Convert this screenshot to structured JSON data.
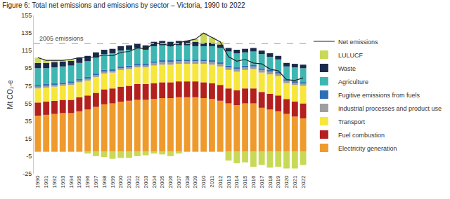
{
  "chart_data": {
    "type": "bar",
    "stacked": true,
    "title": "Figure 6: Total net emissions and emissions by sector – Victoria, 1990 to 2022",
    "y_label": "Mt CO₂-e",
    "categories": [
      "1990",
      "1991",
      "1992",
      "1993",
      "1994",
      "1995",
      "1996",
      "1997",
      "1998",
      "1999",
      "2000",
      "2001",
      "2002",
      "2003",
      "2004",
      "2005",
      "2006",
      "2007",
      "2008",
      "2009",
      "2010",
      "2011",
      "2012",
      "2013",
      "2014",
      "2015",
      "2016",
      "2017",
      "2018",
      "2019",
      "2020",
      "2021",
      "2022"
    ],
    "series": [
      {
        "name": "Electricity generation",
        "color": "#ef9a2d",
        "values": [
          41,
          42,
          43,
          44,
          44,
          46,
          48,
          51,
          54,
          55,
          57,
          58,
          59,
          59,
          60,
          61,
          61,
          62,
          62,
          62,
          61,
          60,
          58,
          55,
          53,
          55,
          55,
          50,
          48,
          46,
          43,
          40,
          38
        ]
      },
      {
        "name": "Fuel combustion",
        "color": "#b3201e",
        "values": [
          15,
          15,
          15,
          15,
          15,
          16,
          16,
          16,
          17,
          17,
          17,
          17,
          18,
          18,
          18,
          18,
          18,
          18,
          18,
          18,
          18,
          18,
          18,
          17,
          17,
          17,
          17,
          18,
          18,
          18,
          17,
          17,
          17
        ]
      },
      {
        "name": "Transport",
        "color": "#f7e63b",
        "values": [
          16,
          16,
          16,
          16,
          17,
          17,
          17,
          18,
          18,
          18,
          19,
          19,
          19,
          19,
          20,
          20,
          20,
          20,
          20,
          20,
          21,
          21,
          21,
          21,
          21,
          21,
          22,
          22,
          22,
          22,
          18,
          19,
          20
        ]
      },
      {
        "name": "Industrial processes and product use",
        "color": "#9e9e9e",
        "values": [
          2,
          2,
          2,
          2,
          2,
          2,
          2,
          2,
          2,
          2,
          2,
          2,
          2,
          2,
          3,
          3,
          3,
          3,
          3,
          3,
          3,
          3,
          3,
          3,
          3,
          3,
          3,
          3,
          3,
          3,
          3,
          3,
          3
        ]
      },
      {
        "name": "Fugitive emissions from fuels",
        "color": "#2f6fb5",
        "values": [
          2,
          2,
          2,
          2,
          2,
          2,
          2,
          2,
          2,
          2,
          2,
          2,
          2,
          2,
          2,
          2,
          2,
          2,
          2,
          2,
          2,
          2,
          2,
          2,
          2,
          2,
          2,
          2,
          2,
          2,
          1,
          1,
          1
        ]
      },
      {
        "name": "Agriculture",
        "color": "#3fb6b2",
        "values": [
          19,
          18,
          18,
          18,
          18,
          18,
          18,
          18,
          18,
          18,
          18,
          18,
          18,
          16,
          17,
          17,
          16,
          16,
          16,
          15,
          15,
          16,
          16,
          16,
          16,
          15,
          15,
          16,
          15,
          14,
          15,
          16,
          16
        ]
      },
      {
        "name": "Waste",
        "color": "#1b2a4a",
        "values": [
          6,
          6,
          6,
          6,
          6,
          6,
          6,
          6,
          5,
          5,
          5,
          5,
          5,
          5,
          5,
          5,
          5,
          5,
          5,
          5,
          4,
          4,
          4,
          4,
          4,
          4,
          4,
          4,
          4,
          4,
          4,
          4,
          4
        ]
      },
      {
        "name": "LULUCF",
        "color": "#c8d957",
        "values": [
          6,
          3,
          2,
          1,
          1,
          0,
          -2,
          -5,
          -6,
          -8,
          -7,
          -7,
          -5,
          -4,
          -2,
          -3,
          -5,
          -2,
          0,
          3,
          11,
          6,
          3,
          -10,
          -13,
          -12,
          -17,
          -15,
          -18,
          -17,
          -19,
          -19,
          -15
        ]
      },
      {
        "name": "Net emissions",
        "type": "line",
        "color": "#222222",
        "values": [
          107,
          104,
          104,
          104,
          105,
          107,
          107,
          108,
          110,
          109,
          113,
          114,
          118,
          117,
          123,
          123,
          120,
          124,
          126,
          128,
          135,
          130,
          125,
          108,
          103,
          105,
          101,
          100,
          94,
          92,
          82,
          81,
          84
        ]
      }
    ],
    "annotations": [
      {
        "text": "2005 emissions",
        "y": 123,
        "line_style": "dashed"
      }
    ],
    "ylim": [
      -25,
      155
    ],
    "yticks": [
      -25,
      -5,
      15,
      35,
      55,
      75,
      95,
      115,
      135,
      155
    ],
    "grid": false,
    "legend": "right"
  }
}
